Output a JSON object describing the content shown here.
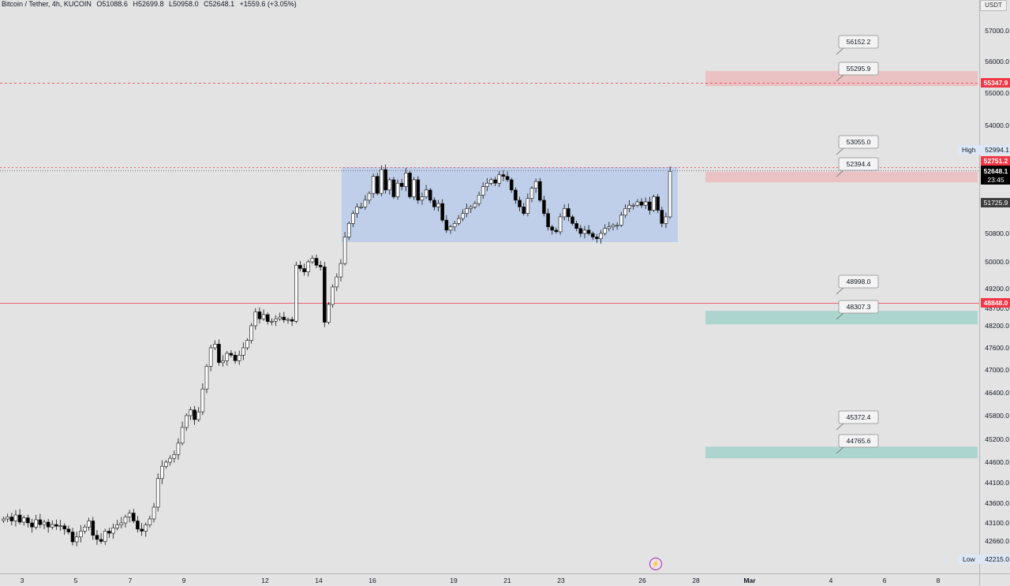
{
  "legend": {
    "symbol": "Bitcoin / Tether, 4h, KUCOIN",
    "open": "O51088.6",
    "high": "H52699.8",
    "low": "L50958.0",
    "close": "C52648.1",
    "change": "+1559.6 (+3.05%)"
  },
  "currency_label": "USDT",
  "colors": {
    "background": "#e3e3e3",
    "candle_up_fill": "#ffffff",
    "candle_down_fill": "#000000",
    "resistance_zone": "#f3a7aa",
    "support_zone": "#7ecbbd",
    "range_box": "#a9c1ed",
    "ask_line": "#f23645",
    "price_label_bg": "#000000"
  },
  "chart_data": {
    "type": "candlestick",
    "timeframe": "4h",
    "pair": "BTC/USDT",
    "y_axis_ticks": [
      "57000.0",
      "56000.0",
      "55000.0",
      "54000.0",
      "51725.9",
      "50800.0",
      "50000.0",
      "49200.0",
      "48700.0",
      "48200.0",
      "47600.0",
      "47000.0",
      "46400.0",
      "45800.0",
      "45200.0",
      "44600.0",
      "44100.0",
      "43600.0",
      "43100.0",
      "42660.0"
    ],
    "x_axis_ticks": [
      "3",
      "5",
      "7",
      "9",
      "12",
      "14",
      "16",
      "19",
      "21",
      "23",
      "26",
      "28",
      "Mar",
      "4",
      "6",
      "8"
    ],
    "axis_labels": {
      "high_label": "High",
      "high_value": "52994.1",
      "low_label": "Low",
      "low_value": "42215.0",
      "current_price": "52648.1",
      "countdown": "23:45",
      "line_red_upper": "55347.9",
      "line_red_mid": "52751.2",
      "line_red_lower": "48848.0"
    },
    "zones": [
      {
        "kind": "resistance",
        "top": 56152.2,
        "bottom": 55295.9,
        "labels": [
          "56152.2",
          "55295.9"
        ]
      },
      {
        "kind": "resistance",
        "top": 53055.0,
        "bottom": 52394.4,
        "labels": [
          "53055.0",
          "52394.4"
        ]
      },
      {
        "kind": "support",
        "top": 48998.0,
        "bottom": 48307.3,
        "labels": [
          "48998.0",
          "48307.3"
        ]
      },
      {
        "kind": "support",
        "top": 45372.4,
        "bottom": 44765.6,
        "labels": [
          "45372.4",
          "44765.6"
        ]
      }
    ],
    "range_box": {
      "top": 52700,
      "bottom": 50600,
      "from": "Feb 15",
      "to": "Feb 27"
    },
    "candles_close": [
      43200,
      43250,
      43150,
      43300,
      43120,
      43230,
      43100,
      43000,
      43180,
      43060,
      43120,
      43000,
      43060,
      43020,
      43030,
      42950,
      42880,
      42640,
      42760,
      42900,
      43000,
      43150,
      42800,
      42700,
      42650,
      42900,
      42850,
      42980,
      43050,
      43100,
      43250,
      43350,
      43150,
      42950,
      42900,
      43050,
      43200,
      43500,
      44200,
      44500,
      44600,
      44700,
      44800,
      45100,
      45500,
      45800,
      45950,
      45700,
      45900,
      46500,
      47100,
      47600,
      47700,
      47200,
      47250,
      47450,
      47400,
      47250,
      47400,
      47600,
      47800,
      48200,
      48600,
      48400,
      48520,
      48320,
      48330,
      48400,
      48450,
      48370,
      48380,
      48330,
      49900,
      49800,
      49700,
      50000,
      50100,
      49900,
      49850,
      48300,
      48800,
      49250,
      49550,
      49950,
      50700,
      51100,
      51400,
      51600,
      51600,
      51800,
      52000,
      52500,
      52000,
      52700,
      52100,
      52400,
      51900,
      52300,
      52200,
      52600,
      51900,
      52400,
      51800,
      51900,
      52100,
      51800,
      51600,
      51700,
      51200,
      50900,
      51000,
      51100,
      51250,
      51400,
      51550,
      51600,
      51700,
      51950,
      52200,
      52300,
      52400,
      52300,
      52550,
      52500,
      52400,
      52100,
      51800,
      51600,
      51400,
      51850,
      52150,
      52350,
      51800,
      51400,
      51000,
      50900,
      50850,
      51300,
      51550,
      51300,
      51100,
      50950,
      50800,
      50900,
      50800,
      50700,
      50650,
      50800,
      50950,
      51000,
      51050,
      51050,
      51350,
      51550,
      51650,
      51650,
      51750,
      51650,
      51750,
      51500,
      51900,
      51500,
      51100,
      51300,
      52648
    ]
  }
}
